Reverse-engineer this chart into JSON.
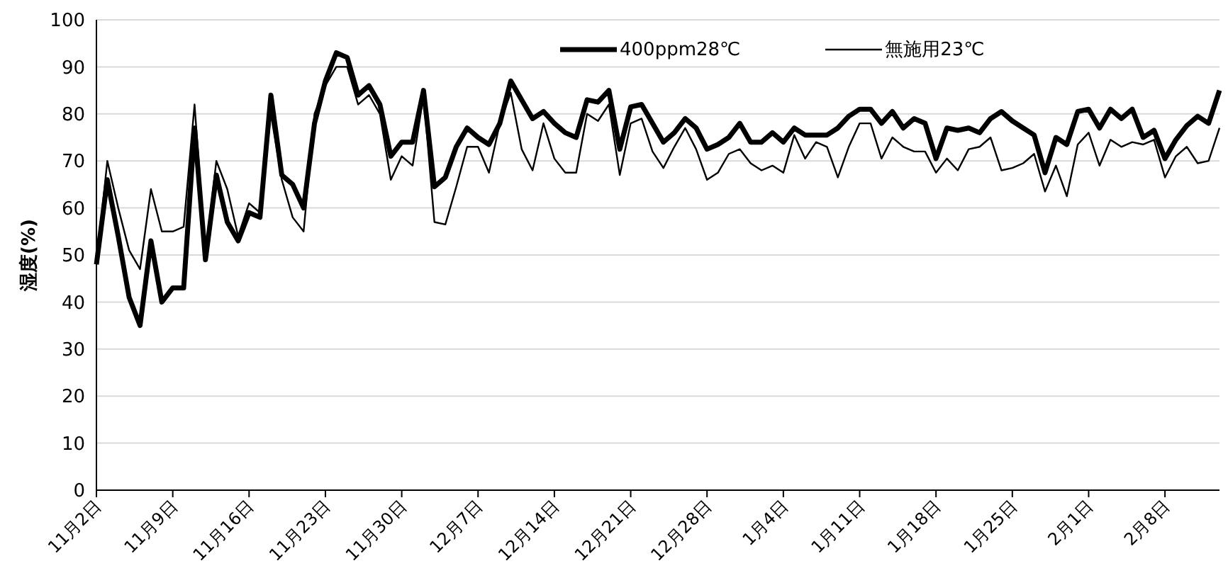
{
  "chart_data": {
    "type": "line",
    "ylabel": "湿度(%)",
    "categories": [
      "11月2日",
      null,
      null,
      null,
      null,
      null,
      null,
      "11月9日",
      null,
      null,
      null,
      null,
      null,
      null,
      "11月16日",
      null,
      null,
      null,
      null,
      null,
      null,
      "11月23日",
      null,
      null,
      null,
      null,
      null,
      null,
      "11月30日",
      null,
      null,
      null,
      null,
      null,
      null,
      "12月7日",
      null,
      null,
      null,
      null,
      null,
      null,
      "12月14日",
      null,
      null,
      null,
      null,
      null,
      null,
      "12月21日",
      null,
      null,
      null,
      null,
      null,
      null,
      "12月28日",
      null,
      null,
      null,
      null,
      null,
      null,
      "1月4日",
      null,
      null,
      null,
      null,
      null,
      null,
      "1月11日",
      null,
      null,
      null,
      null,
      null,
      null,
      "1月18日",
      null,
      null,
      null,
      null,
      null,
      null,
      "1月25日",
      null,
      null,
      null,
      null,
      null,
      null,
      "2月1日",
      null,
      null,
      null,
      null,
      null,
      null,
      "2月8日",
      null,
      null,
      null,
      null,
      null
    ],
    "series": [
      {
        "name": "400ppm28℃",
        "color": "#000000",
        "values": [
          48,
          66,
          54,
          41,
          35,
          53,
          40,
          43,
          43,
          77,
          49,
          67,
          57,
          53,
          59,
          58,
          84,
          67,
          65,
          60,
          78,
          87,
          93,
          92,
          84,
          86,
          82,
          71,
          74,
          74,
          85,
          64.5,
          66.5,
          73,
          77,
          75,
          73.5,
          78,
          87,
          83,
          79,
          80.5,
          78,
          76,
          75,
          83,
          82.5,
          85,
          72.5,
          81.5,
          82,
          78,
          74,
          76,
          79,
          77,
          72.5,
          73.5,
          75,
          78,
          74,
          74,
          76,
          74,
          77,
          75.5,
          75.5,
          75.5,
          77,
          79.5,
          81,
          81,
          78,
          80.5,
          77,
          79,
          78,
          70.5,
          77,
          76.5,
          77,
          76,
          79,
          80.5,
          78.5,
          77,
          75.5,
          67.5,
          75,
          73.5,
          80.5,
          81,
          77,
          81,
          79,
          81,
          75,
          76.5,
          70.5,
          74.5,
          77.5,
          79.5,
          78,
          85
        ]
      },
      {
        "name": "無施用23℃",
        "color": "#000000",
        "values": [
          48,
          70,
          60,
          51,
          47,
          64,
          55,
          55,
          56,
          82,
          50,
          70,
          64,
          54,
          61,
          59,
          80,
          66,
          58,
          55,
          80,
          86,
          90,
          90,
          82,
          84,
          80,
          66,
          71,
          69,
          84,
          57,
          56.5,
          64.5,
          73,
          73,
          67.5,
          78,
          84.5,
          72.5,
          68,
          78,
          70.5,
          67.5,
          67.5,
          80,
          78.5,
          82,
          67,
          78,
          79,
          72,
          68.5,
          73,
          77,
          72.5,
          66,
          67.5,
          71.5,
          72.5,
          69.5,
          68,
          69,
          67.5,
          75.5,
          70.5,
          74,
          73,
          66.5,
          73,
          78,
          78,
          70.5,
          75,
          73,
          72,
          72,
          67.5,
          70.5,
          68,
          72.5,
          73,
          75,
          68,
          68.5,
          69.5,
          71.5,
          63.5,
          69,
          62.5,
          73.5,
          76,
          69,
          74.5,
          73,
          74,
          73.5,
          74.5,
          66.5,
          71,
          73,
          69.5,
          70,
          77
        ]
      }
    ],
    "ylim": [
      0,
      100
    ],
    "yticks": [
      0,
      10,
      20,
      30,
      40,
      50,
      60,
      70,
      80,
      90,
      100
    ],
    "grid": "y",
    "legend": "top",
    "marker": "none",
    "line_style": "solid"
  }
}
